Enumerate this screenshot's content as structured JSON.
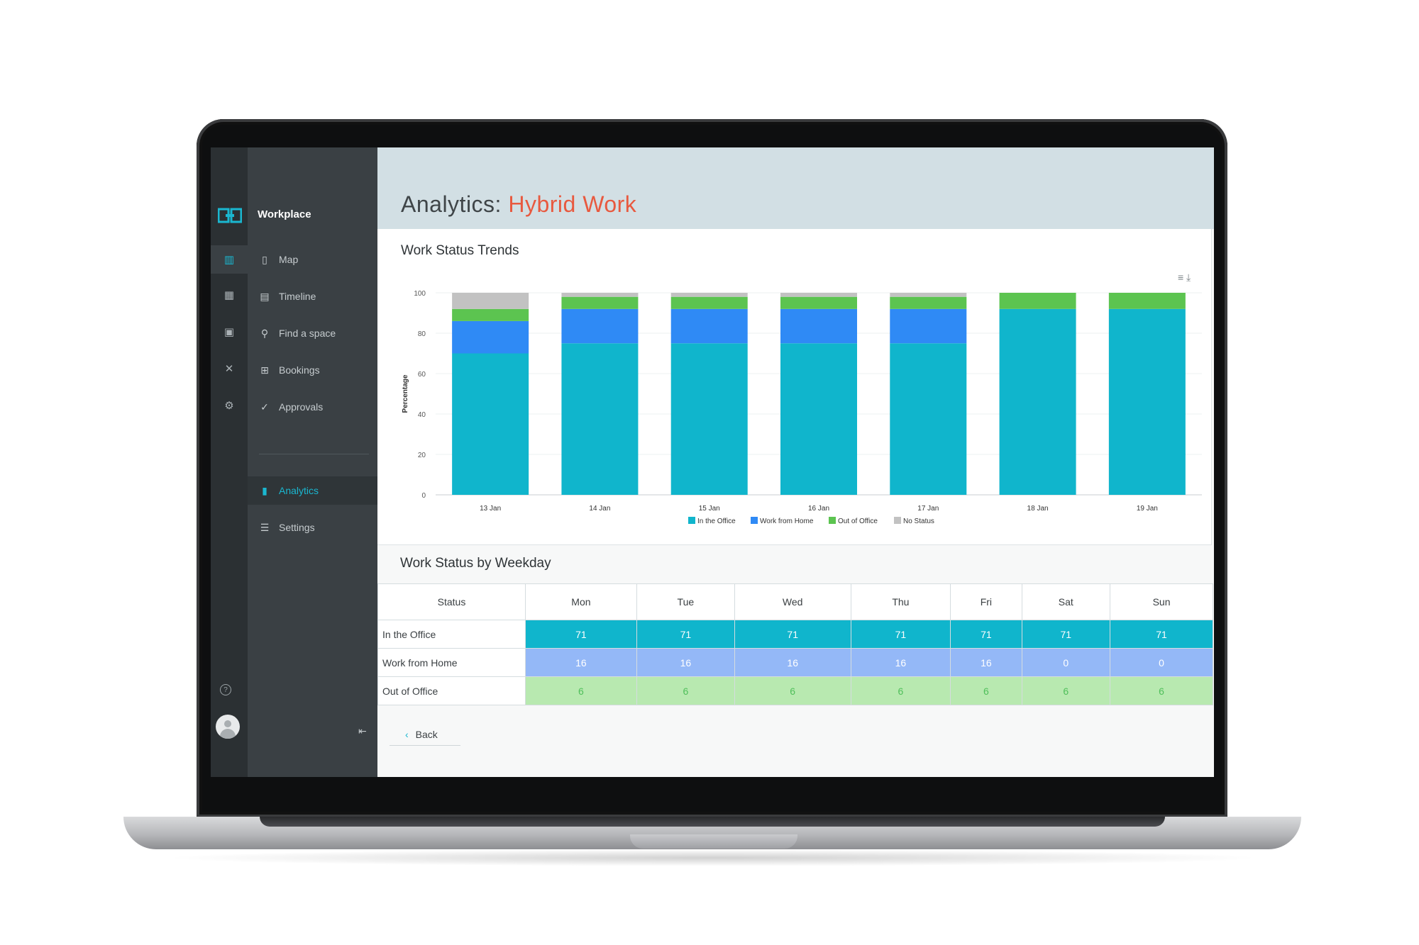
{
  "app": {
    "brand": "Workplace"
  },
  "sidebar": {
    "items": [
      {
        "label": "Map",
        "icon": "map-icon"
      },
      {
        "label": "Timeline",
        "icon": "timeline-icon"
      },
      {
        "label": "Find a space",
        "icon": "search-icon"
      },
      {
        "label": "Bookings",
        "icon": "bookings-icon"
      },
      {
        "label": "Approvals",
        "icon": "check-circle-icon"
      },
      {
        "label": "Analytics",
        "icon": "bar-chart-icon",
        "active": true
      },
      {
        "label": "Settings",
        "icon": "sliders-icon"
      }
    ]
  },
  "header": {
    "title_prefix": "Analytics: ",
    "title_accent": "Hybrid Work"
  },
  "trends": {
    "title": "Work Status Trends"
  },
  "weekday": {
    "title": "Work Status by Weekday",
    "columns": [
      "Status",
      "Mon",
      "Tue",
      "Wed",
      "Thu",
      "Fri",
      "Sat",
      "Sun"
    ],
    "rows": [
      {
        "label": "In the Office",
        "values": [
          "71",
          "71",
          "71",
          "71",
          "71",
          "71",
          "71"
        ]
      },
      {
        "label": "Work from Home",
        "values": [
          "16",
          "16",
          "16",
          "16",
          "16",
          "0",
          "0"
        ]
      },
      {
        "label": "Out of Office",
        "values": [
          "6",
          "6",
          "6",
          "6",
          "6",
          "6",
          "6"
        ]
      }
    ]
  },
  "back": {
    "label": "Back"
  },
  "colors": {
    "office": "#10b5cc",
    "home": "#2f8af5",
    "out": "#5cc450",
    "none": "#c2c2c2",
    "accent": "#e8593f"
  },
  "chart_data": {
    "type": "bar",
    "stacked": true,
    "title": "Work Status Trends",
    "ylabel": "Percentage",
    "ylim": [
      0,
      100
    ],
    "yticks": [
      "0",
      "20",
      "40",
      "60",
      "80",
      "100"
    ],
    "categories": [
      "13 Jan",
      "14 Jan",
      "15 Jan",
      "16 Jan",
      "17 Jan",
      "18 Jan",
      "19 Jan"
    ],
    "series": [
      {
        "name": "In the Office",
        "color": "#10b5cc",
        "values": [
          70,
          75,
          75,
          75,
          75,
          92,
          92
        ]
      },
      {
        "name": "Work from Home",
        "color": "#2f8af5",
        "values": [
          16,
          17,
          17,
          17,
          17,
          0,
          0
        ]
      },
      {
        "name": "Out of Office",
        "color": "#5cc450",
        "values": [
          6,
          6,
          6,
          6,
          6,
          8,
          8
        ]
      },
      {
        "name": "No Status",
        "color": "#c2c2c2",
        "values": [
          8,
          2,
          2,
          2,
          2,
          0,
          0
        ]
      }
    ],
    "legend": "bottom"
  }
}
